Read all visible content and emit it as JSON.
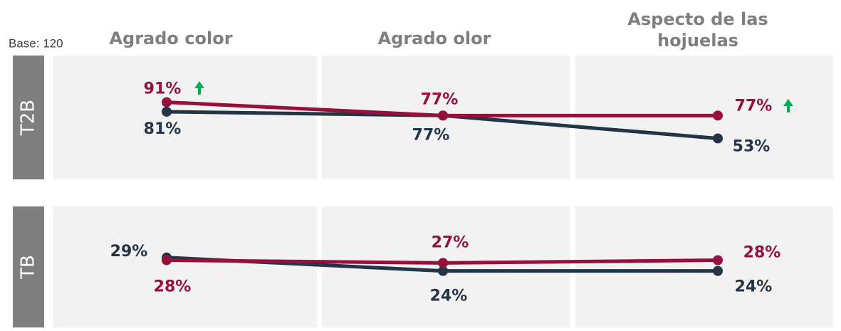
{
  "base": "Base: 120",
  "chart_data": [
    {
      "type": "line",
      "title": "T2B",
      "categories": [
        "Agrado color",
        "Agrado olor",
        "Aspecto de las hojuelas"
      ],
      "ylim": [
        10,
        140
      ],
      "series": [
        {
          "color": "#243447",
          "values": [
            81,
            77,
            53
          ],
          "value_labels": [
            "81%",
            "77%",
            "53%"
          ]
        },
        {
          "color": "#96103a",
          "values": [
            91,
            77,
            77
          ],
          "value_labels": [
            "91%",
            "77%",
            "77%"
          ]
        }
      ]
    },
    {
      "type": "line",
      "title": "TB",
      "ylim": [
        3,
        48
      ],
      "series": [
        {
          "color": "#243447",
          "values": [
            29,
            24,
            24
          ],
          "value_labels": [
            "29%",
            "24%",
            "24%"
          ]
        },
        {
          "color": "#96103a",
          "values": [
            28,
            27,
            28
          ],
          "value_labels": [
            "28%",
            "27%",
            "28%"
          ]
        }
      ]
    }
  ]
}
